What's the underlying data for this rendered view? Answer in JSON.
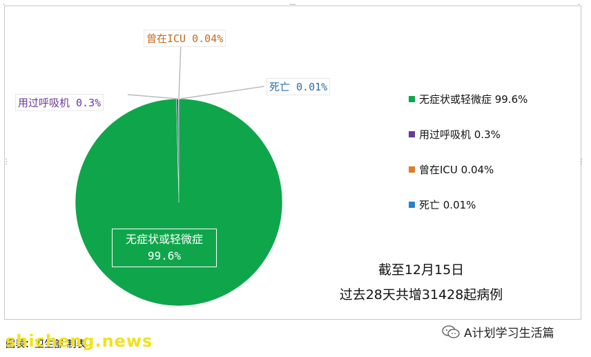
{
  "chart_data": {
    "type": "pie",
    "slices": [
      {
        "label": "无症状或轻微症",
        "value": 99.6,
        "display": "99.6%",
        "color": "#0fa64b"
      },
      {
        "label": "用过呼吸机",
        "value": 0.3,
        "display": "0.3%",
        "color": "#6a3a9a"
      },
      {
        "label": "曾在ICU",
        "value": 0.04,
        "display": "0.04%",
        "color": "#e07b28"
      },
      {
        "label": "死亡",
        "value": 0.01,
        "display": "0.01%",
        "color": "#2d7fc4"
      }
    ],
    "data_labels": {
      "main_line1": "无症状或轻微症",
      "main_line2": "99.6%",
      "ventilator": "用过呼吸机 0.3%",
      "icu": "曾在ICU 0.04%",
      "death": "死亡 0.01%"
    },
    "legend": {
      "placement": "right",
      "entries": [
        "无症状或轻微症 99.6%",
        "用过呼吸机 0.3%",
        "曾在ICU 0.04%",
        "死亡 0.01%"
      ]
    },
    "annotation": {
      "line1": "截至12月15日",
      "line2": "过去28天共增31428起病例"
    }
  },
  "caption": "图表：卫生部 制表",
  "watermark": "shicheng.news",
  "source": "A计划学习生活篇",
  "icons": [
    "chat-bubble-icon"
  ]
}
